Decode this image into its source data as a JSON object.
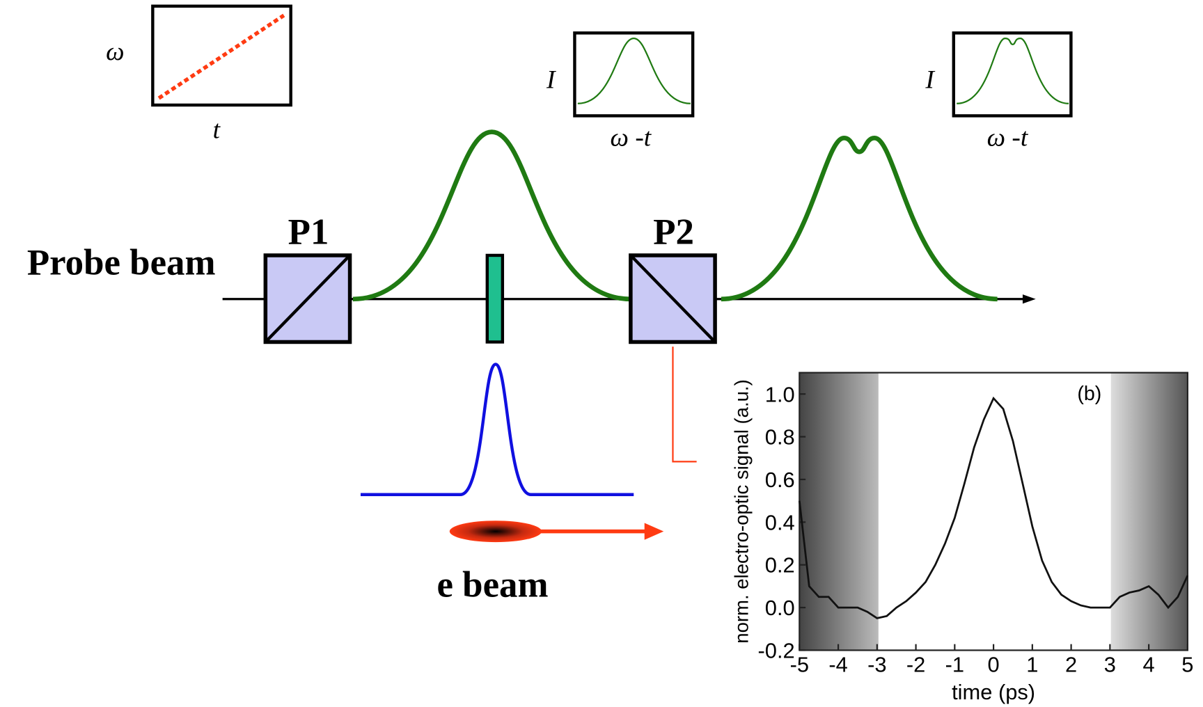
{
  "labels": {
    "probe_beam": "Probe beam",
    "p1": "P1",
    "p2": "P2",
    "e_beam": "e beam"
  },
  "insets": [
    {
      "y_label": "ω",
      "x_label": "t"
    },
    {
      "y_label": "I",
      "x_label": "ω -t"
    },
    {
      "y_label": "I",
      "x_label": "ω -t"
    }
  ],
  "chart_data": {
    "type": "line",
    "annotation": "(b)",
    "x_label": "time (ps)",
    "y_label": "norm. electro-optic signal (a.u.)",
    "x": [
      -5,
      -4.75,
      -4.5,
      -4.25,
      -4,
      -3.75,
      -3.5,
      -3.25,
      -3,
      -2.75,
      -2.5,
      -2.25,
      -2,
      -1.75,
      -1.5,
      -1.25,
      -1,
      -0.75,
      -0.5,
      -0.25,
      0,
      0.25,
      0.5,
      0.75,
      1,
      1.25,
      1.5,
      1.75,
      2,
      2.25,
      2.5,
      2.75,
      3,
      3.25,
      3.5,
      3.75,
      4,
      4.25,
      4.5,
      4.75,
      5
    ],
    "values": [
      0.5,
      0.1,
      0.05,
      0.05,
      0.0,
      0.0,
      0.0,
      -0.02,
      -0.05,
      -0.04,
      0.0,
      0.03,
      0.07,
      0.12,
      0.2,
      0.3,
      0.42,
      0.58,
      0.75,
      0.88,
      0.98,
      0.93,
      0.78,
      0.58,
      0.38,
      0.22,
      0.12,
      0.06,
      0.03,
      0.01,
      0.0,
      0.0,
      0.0,
      0.05,
      0.07,
      0.08,
      0.1,
      0.06,
      0.0,
      0.05,
      0.15
    ],
    "color": "#111111",
    "xlim": [
      -5,
      5
    ],
    "ylim": [
      -0.2,
      1.1
    ],
    "xticks": [
      -5,
      -4,
      -3,
      -2,
      -1,
      0,
      1,
      2,
      3,
      4,
      5
    ],
    "yticks": [
      -0.2,
      {
        "value": 0,
        "label": "0.0"
      },
      0.2,
      0.4,
      0.6,
      0.8,
      {
        "value": 1,
        "label": "1.0"
      }
    ]
  }
}
